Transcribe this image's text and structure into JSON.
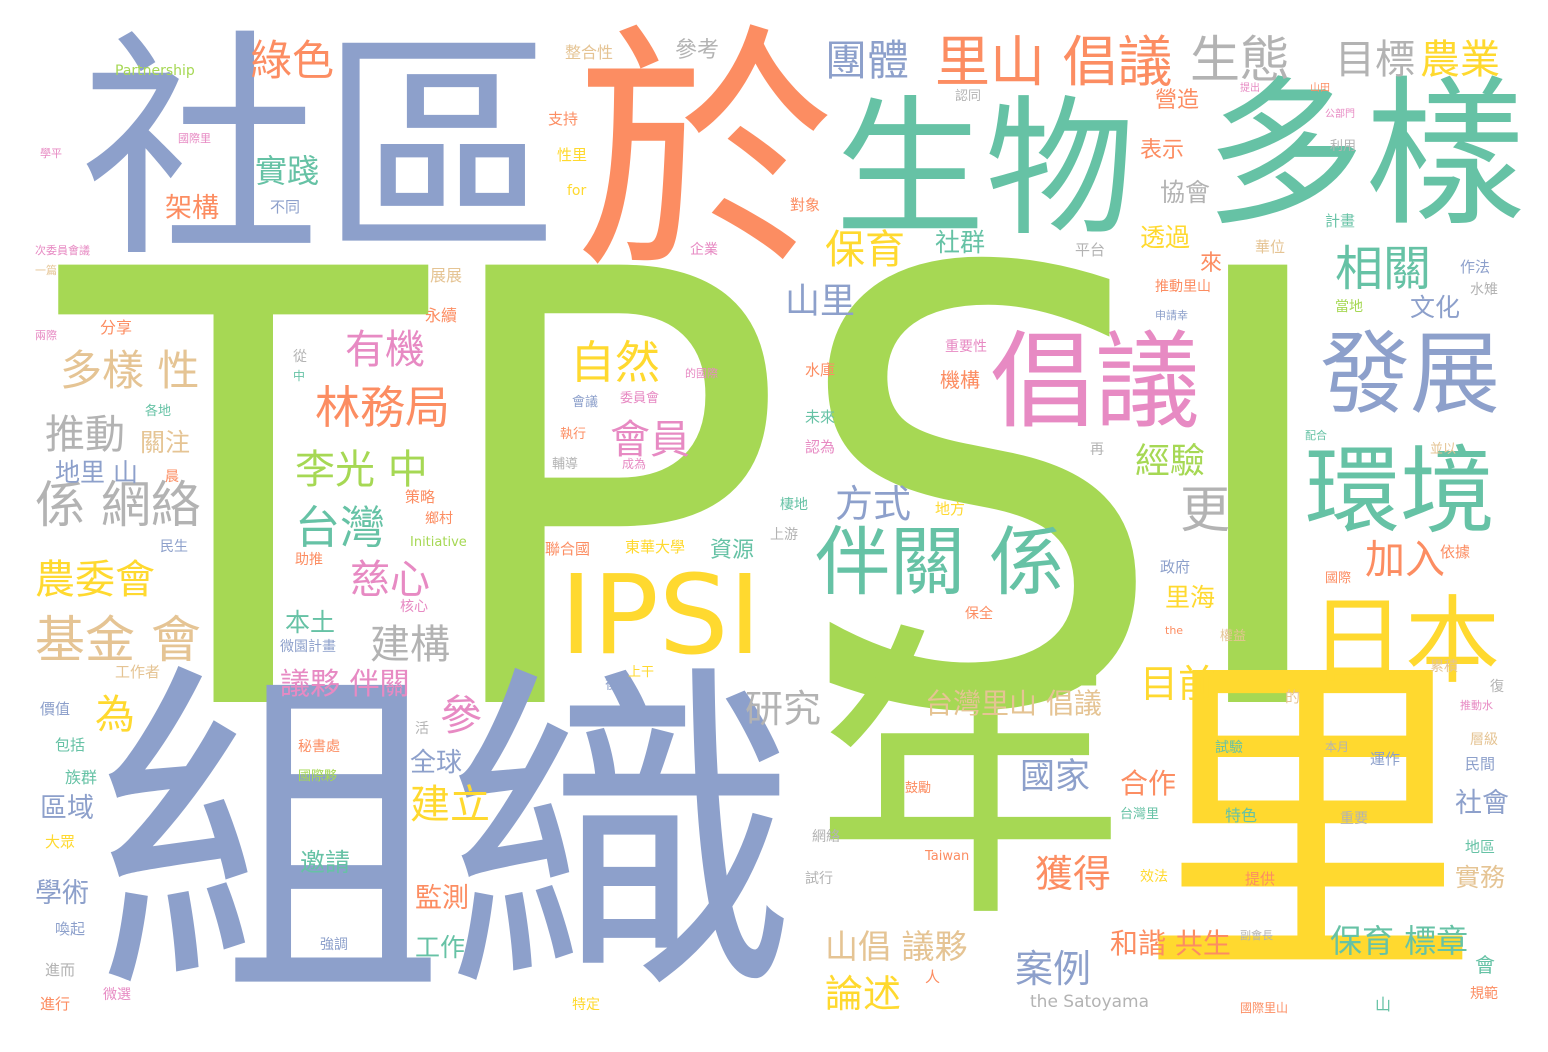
{
  "palette": {
    "green": "#a6d854",
    "blue": "#8da0cb",
    "orange": "#fc8d62",
    "teal": "#66c2a5",
    "yellow": "#ffd92f",
    "pink": "#e78ac3",
    "tan": "#e5c494",
    "gray": "#b3b3b3"
  },
  "words": [
    {
      "text": "TPSI",
      "color": "green"
    },
    {
      "text": "組織",
      "color": "blue"
    },
    {
      "text": "社區",
      "color": "blue"
    },
    {
      "text": "於",
      "color": "orange"
    },
    {
      "text": "生物",
      "color": "teal"
    },
    {
      "text": "多樣",
      "color": "teal"
    },
    {
      "text": "年",
      "color": "green"
    },
    {
      "text": "里",
      "color": "yellow"
    },
    {
      "text": "IPSI",
      "color": "yellow"
    },
    {
      "text": "倡議",
      "color": "pink"
    },
    {
      "text": "發展",
      "color": "blue"
    },
    {
      "text": "環境",
      "color": "teal"
    },
    {
      "text": "日本",
      "color": "yellow"
    },
    {
      "text": "伴關 係",
      "color": "teal"
    },
    {
      "text": "里山 倡議",
      "color": "orange"
    },
    {
      "text": "生態",
      "color": "gray"
    },
    {
      "text": "目標",
      "color": "gray"
    },
    {
      "text": "農業",
      "color": "yellow"
    },
    {
      "text": "團體",
      "color": "blue"
    },
    {
      "text": "綠色",
      "color": "orange"
    },
    {
      "text": "相關",
      "color": "teal"
    },
    {
      "text": "保育",
      "color": "yellow"
    },
    {
      "text": "自然",
      "color": "yellow"
    },
    {
      "text": "會員",
      "color": "pink"
    },
    {
      "text": "林務局",
      "color": "orange"
    },
    {
      "text": "有機",
      "color": "pink"
    },
    {
      "text": "多樣 性",
      "color": "tan"
    },
    {
      "text": "推動",
      "color": "gray"
    },
    {
      "text": "係 網絡",
      "color": "gray"
    },
    {
      "text": "李光 中",
      "color": "green"
    },
    {
      "text": "台灣",
      "color": "teal"
    },
    {
      "text": "慈心",
      "color": "pink"
    },
    {
      "text": "方式",
      "color": "blue"
    },
    {
      "text": "建構",
      "color": "gray"
    },
    {
      "text": "農委會",
      "color": "yellow"
    },
    {
      "text": "基金 會",
      "color": "tan"
    },
    {
      "text": "加入",
      "color": "orange"
    },
    {
      "text": "更",
      "color": "gray"
    },
    {
      "text": "經驗",
      "color": "green"
    },
    {
      "text": "山里",
      "color": "blue"
    },
    {
      "text": "實踐",
      "color": "teal"
    },
    {
      "text": "目前",
      "color": "yellow"
    },
    {
      "text": "研究",
      "color": "gray"
    },
    {
      "text": "台灣里山 倡議",
      "color": "tan"
    },
    {
      "text": "國家",
      "color": "blue"
    },
    {
      "text": "案例",
      "color": "blue"
    },
    {
      "text": "獲得",
      "color": "orange"
    },
    {
      "text": "論述",
      "color": "yellow"
    },
    {
      "text": "山倡 議夥",
      "color": "tan"
    },
    {
      "text": "議夥 伴關",
      "color": "pink"
    },
    {
      "text": "參",
      "color": "pink"
    },
    {
      "text": "為",
      "color": "yellow"
    },
    {
      "text": "建立",
      "color": "yellow"
    },
    {
      "text": "全球",
      "color": "blue"
    },
    {
      "text": "保育 標章",
      "color": "teal"
    },
    {
      "text": "合作",
      "color": "orange"
    },
    {
      "text": "和諧 共生",
      "color": "orange"
    },
    {
      "text": "里海",
      "color": "yellow"
    },
    {
      "text": "監測",
      "color": "orange"
    },
    {
      "text": "邀請",
      "color": "teal"
    },
    {
      "text": "工作",
      "color": "teal"
    },
    {
      "text": "社會",
      "color": "blue"
    },
    {
      "text": "實務",
      "color": "tan"
    },
    {
      "text": "架構",
      "color": "orange"
    },
    {
      "text": "不同",
      "color": "blue"
    },
    {
      "text": "社群",
      "color": "teal"
    },
    {
      "text": "資源",
      "color": "teal"
    },
    {
      "text": "本土",
      "color": "teal"
    },
    {
      "text": "區域",
      "color": "blue"
    },
    {
      "text": "學術",
      "color": "blue"
    },
    {
      "text": "關注",
      "color": "tan"
    },
    {
      "text": "地里 山",
      "color": "blue"
    },
    {
      "text": "透過",
      "color": "yellow"
    },
    {
      "text": "協會",
      "color": "gray"
    },
    {
      "text": "表示",
      "color": "orange"
    },
    {
      "text": "營造",
      "color": "orange"
    },
    {
      "text": "文化",
      "color": "blue"
    },
    {
      "text": "參考",
      "color": "gray"
    },
    {
      "text": "整合性",
      "color": "tan"
    },
    {
      "text": "Partnership",
      "color": "green"
    },
    {
      "text": "支持",
      "color": "orange"
    },
    {
      "text": "性里",
      "color": "yellow"
    },
    {
      "text": "for",
      "color": "yellow"
    },
    {
      "text": "對象",
      "color": "orange"
    },
    {
      "text": "企業",
      "color": "pink"
    },
    {
      "text": "平台",
      "color": "gray"
    },
    {
      "text": "計畫",
      "color": "teal"
    },
    {
      "text": "華位",
      "color": "tan"
    },
    {
      "text": "作法",
      "color": "blue"
    },
    {
      "text": "推動里山",
      "color": "orange"
    },
    {
      "text": "水雉",
      "color": "gray"
    },
    {
      "text": "當地",
      "color": "green"
    },
    {
      "text": "來",
      "color": "orange"
    },
    {
      "text": "分享",
      "color": "orange"
    },
    {
      "text": "永續",
      "color": "orange"
    },
    {
      "text": "展展",
      "color": "tan"
    },
    {
      "text": "機構",
      "color": "orange"
    },
    {
      "text": "重要性",
      "color": "pink"
    },
    {
      "text": "水庫",
      "color": "orange"
    },
    {
      "text": "未來",
      "color": "teal"
    },
    {
      "text": "認為",
      "color": "pink"
    },
    {
      "text": "會議",
      "color": "blue"
    },
    {
      "text": "執行",
      "color": "orange"
    },
    {
      "text": "輔導",
      "color": "gray"
    },
    {
      "text": "成為",
      "color": "pink"
    },
    {
      "text": "策略",
      "color": "orange"
    },
    {
      "text": "鄉村",
      "color": "orange"
    },
    {
      "text": "Initiative",
      "color": "green"
    },
    {
      "text": "東華大學",
      "color": "yellow"
    },
    {
      "text": "聯合國",
      "color": "orange"
    },
    {
      "text": "棲地",
      "color": "teal"
    },
    {
      "text": "地方",
      "color": "yellow"
    },
    {
      "text": "上游",
      "color": "gray"
    },
    {
      "text": "政府",
      "color": "blue"
    },
    {
      "text": "依據",
      "color": "orange"
    },
    {
      "text": "國際",
      "color": "orange"
    },
    {
      "text": "民生",
      "color": "blue"
    },
    {
      "text": "助推",
      "color": "orange"
    },
    {
      "text": "核心",
      "color": "pink"
    },
    {
      "text": "微園計畫",
      "color": "blue"
    },
    {
      "text": "工作者",
      "color": "tan"
    },
    {
      "text": "保全",
      "color": "orange"
    },
    {
      "text": "價值",
      "color": "blue"
    },
    {
      "text": "包括",
      "color": "teal"
    },
    {
      "text": "族群",
      "color": "teal"
    },
    {
      "text": "大眾",
      "color": "yellow"
    },
    {
      "text": "喚起",
      "color": "blue"
    },
    {
      "text": "進而",
      "color": "gray"
    },
    {
      "text": "進行",
      "color": "orange"
    },
    {
      "text": "微選",
      "color": "pink"
    },
    {
      "text": "特定",
      "color": "yellow"
    },
    {
      "text": "秘書處",
      "color": "orange"
    },
    {
      "text": "國際夥",
      "color": "green"
    },
    {
      "text": "強調",
      "color": "blue"
    },
    {
      "text": "鼓勵",
      "color": "orange"
    },
    {
      "text": "試驗",
      "color": "teal"
    },
    {
      "text": "運作",
      "color": "blue"
    },
    {
      "text": "特色",
      "color": "teal"
    },
    {
      "text": "重要",
      "color": "gray"
    },
    {
      "text": "提供",
      "color": "orange"
    },
    {
      "text": "效法",
      "color": "yellow"
    },
    {
      "text": "試行",
      "color": "gray"
    },
    {
      "text": "網絡",
      "color": "gray"
    },
    {
      "text": "台灣里",
      "color": "teal"
    },
    {
      "text": "Taiwan",
      "color": "orange"
    },
    {
      "text": "the Satoyama",
      "color": "gray"
    },
    {
      "text": "國際里山",
      "color": "orange"
    },
    {
      "text": "民間",
      "color": "blue"
    },
    {
      "text": "層級",
      "color": "tan"
    },
    {
      "text": "地區",
      "color": "teal"
    },
    {
      "text": "規範",
      "color": "orange"
    },
    {
      "text": "山",
      "color": "teal"
    },
    {
      "text": "人",
      "color": "orange"
    },
    {
      "text": "活",
      "color": "gray"
    },
    {
      "text": "後",
      "color": "blue"
    },
    {
      "text": "上干",
      "color": "yellow"
    },
    {
      "text": "再",
      "color": "gray"
    },
    {
      "text": "並以",
      "color": "tan"
    },
    {
      "text": "從",
      "color": "gray"
    },
    {
      "text": "中",
      "color": "teal"
    },
    {
      "text": "累積",
      "color": "tan"
    },
    {
      "text": "復",
      "color": "gray"
    },
    {
      "text": "認同",
      "color": "gray"
    },
    {
      "text": "利用",
      "color": "gray"
    },
    {
      "text": "申請幸",
      "color": "blue"
    },
    {
      "text": "國際里",
      "color": "pink"
    },
    {
      "text": "學平",
      "color": "pink"
    },
    {
      "text": "兩際",
      "color": "pink"
    },
    {
      "text": "各地",
      "color": "teal"
    },
    {
      "text": "晨",
      "color": "orange"
    },
    {
      "text": "次委員會議",
      "color": "pink"
    },
    {
      "text": "一篇",
      "color": "tan"
    },
    {
      "text": "委員會",
      "color": "pink"
    },
    {
      "text": "的國際",
      "color": "pink"
    },
    {
      "text": "公部門",
      "color": "pink"
    },
    {
      "text": "山田",
      "color": "orange"
    },
    {
      "text": "提出",
      "color": "pink"
    },
    {
      "text": "配合",
      "color": "teal"
    },
    {
      "text": "本月",
      "color": "gray"
    },
    {
      "text": "的",
      "color": "tan"
    },
    {
      "text": "會",
      "color": "teal"
    },
    {
      "text": "副會長",
      "color": "gray"
    },
    {
      "text": "the",
      "color": "orange"
    },
    {
      "text": "權益",
      "color": "tan"
    },
    {
      "text": "推動水",
      "color": "pink"
    }
  ]
}
